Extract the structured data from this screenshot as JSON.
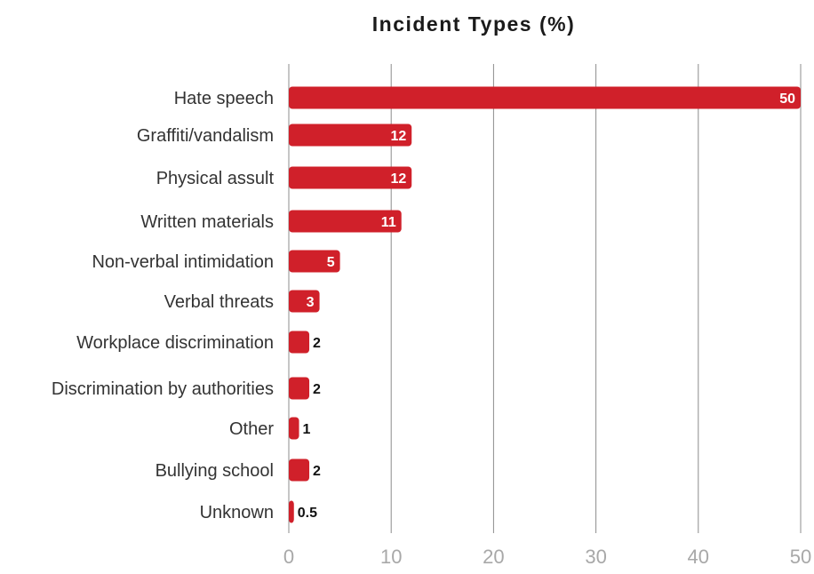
{
  "chart_data": {
    "type": "bar",
    "orientation": "horizontal",
    "title": "Incident Types (%)",
    "xlabel": "",
    "ylabel": "",
    "categories": [
      "Hate speech",
      "Graffiti/vandalism",
      "Physical assult",
      "Written materials",
      "Non-verbal intimidation",
      "Verbal threats",
      "Workplace discrimination",
      "Discrimination by authorities",
      "Other",
      "Bullying school",
      "Unknown"
    ],
    "values": [
      50,
      12,
      12,
      11,
      5,
      3,
      2,
      2,
      1,
      2,
      0.5
    ],
    "value_labels": [
      "50",
      "12",
      "12",
      "11",
      "5",
      "3",
      "2",
      "2",
      "1",
      "2",
      "0.5"
    ],
    "xlim": [
      0,
      50
    ],
    "xticks": [
      0,
      10,
      20,
      30,
      40,
      50
    ],
    "xtick_labels": [
      "0",
      "10",
      "20",
      "30",
      "40",
      "50"
    ],
    "grid": "vertical",
    "legend": "none",
    "bar_color": "#d0202a",
    "grid_color": "#8c8c8c"
  }
}
